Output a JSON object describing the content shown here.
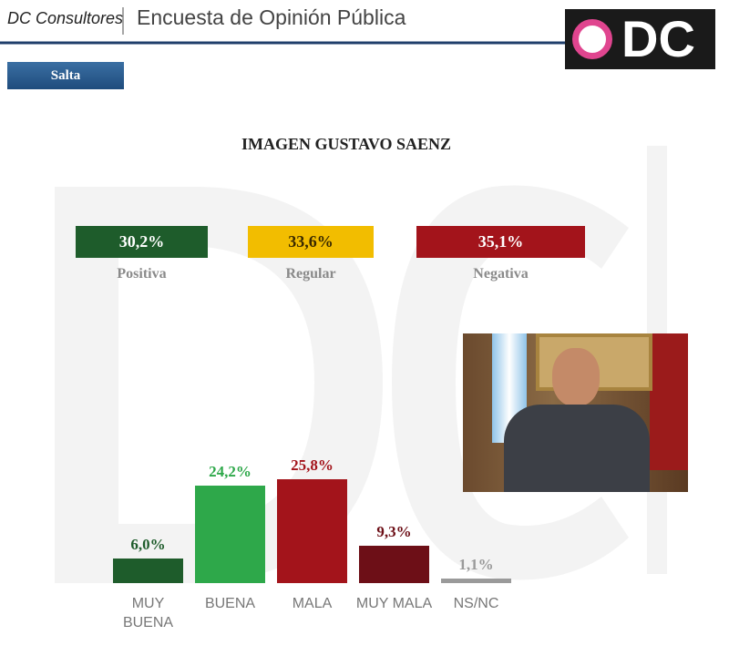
{
  "header": {
    "company": "DC Consultores",
    "survey": "Encuesta de Opinión Pública",
    "logo": "DC"
  },
  "tab": "Salta",
  "summary": {
    "categories": [
      "Positiva",
      "Regular",
      "Negativa"
    ],
    "values": [
      30.2,
      33.6,
      35.1
    ],
    "value_labels": [
      "30,2%",
      "33,6%",
      "35,1%"
    ],
    "colors": [
      "#1e5c2b",
      "#f2bd00",
      "#a3141b"
    ]
  },
  "chart_data": {
    "type": "bar",
    "title": "IMAGEN GUSTAVO SAENZ",
    "categories": [
      "MUY BUENA",
      "BUENA",
      "MALA",
      "MUY MALA",
      "NS/NC"
    ],
    "values": [
      6.0,
      24.2,
      25.8,
      9.3,
      1.1
    ],
    "value_labels": [
      "6,0%",
      "24,2%",
      "25,8%",
      "9,3%",
      "1,1%"
    ],
    "colors": [
      "#1e5c2b",
      "#2ea84a",
      "#a3141b",
      "#6d0f17",
      "#9a9a9a"
    ]
  }
}
